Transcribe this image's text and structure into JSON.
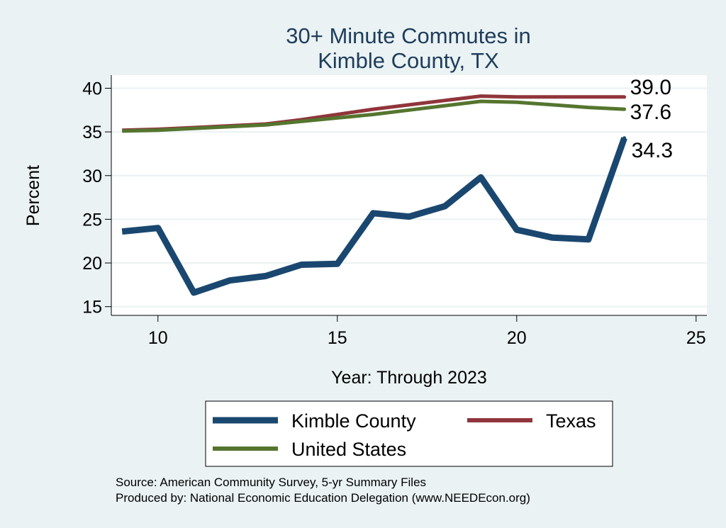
{
  "chart_data": {
    "type": "line",
    "title_lines": [
      "30+ Minute Commutes in",
      "Kimble County, TX"
    ],
    "xlabel": "Year: Through 2023",
    "ylabel": "Percent",
    "xlim": [
      8.7,
      25.3
    ],
    "ylim": [
      14.0,
      41.5
    ],
    "xticks": [
      10,
      15,
      20,
      25
    ],
    "yticks": [
      15,
      20,
      25,
      30,
      35,
      40
    ],
    "grid": "horizontal",
    "legend_position": "bottom",
    "series": [
      {
        "name": "Kimble County",
        "color": "#1a476f",
        "x": [
          9,
          10,
          11,
          12,
          13,
          14,
          15,
          16,
          17,
          18,
          19,
          20,
          21,
          22,
          23
        ],
        "values": [
          23.6,
          24.0,
          16.6,
          18.0,
          18.5,
          19.8,
          19.9,
          25.7,
          25.3,
          26.5,
          29.8,
          23.8,
          22.9,
          22.7,
          34.3
        ],
        "end_label": "34.3"
      },
      {
        "name": "Texas",
        "color": "#90353b",
        "x": [
          9,
          10,
          11,
          12,
          13,
          14,
          15,
          16,
          17,
          18,
          19,
          20,
          21,
          22,
          23
        ],
        "values": [
          35.2,
          35.3,
          35.5,
          35.7,
          35.9,
          36.4,
          37.0,
          37.6,
          38.1,
          38.6,
          39.1,
          39.0,
          39.0,
          39.0,
          39.0
        ],
        "end_label": "39.0"
      },
      {
        "name": "United States",
        "color": "#55752f",
        "x": [
          9,
          10,
          11,
          12,
          13,
          14,
          15,
          16,
          17,
          18,
          19,
          20,
          21,
          22,
          23
        ],
        "values": [
          35.1,
          35.2,
          35.4,
          35.6,
          35.8,
          36.2,
          36.6,
          37.0,
          37.5,
          38.0,
          38.5,
          38.4,
          38.1,
          37.8,
          37.6
        ],
        "end_label": "37.6"
      }
    ],
    "legend": [
      {
        "label": "Kimble County",
        "color": "#1a476f"
      },
      {
        "label": "Texas",
        "color": "#90353b"
      },
      {
        "label": "United States",
        "color": "#55752f"
      }
    ],
    "source_lines": [
      "Source: American Community Survey, 5-yr Summary Files",
      "Produced by: National Economic Education Delegation (www.NEEDEcon.org)"
    ]
  }
}
